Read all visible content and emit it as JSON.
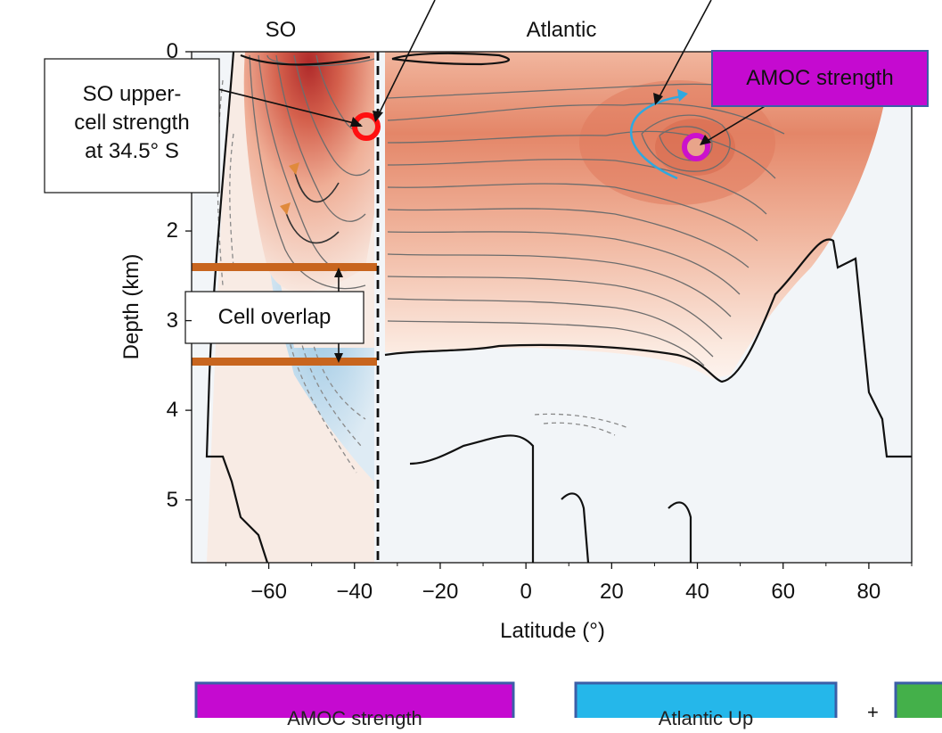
{
  "chart_data": {
    "type": "heatmap",
    "xlabel": "Latitude (°)",
    "ylabel": "Depth (km)",
    "xlim": [
      -78,
      90
    ],
    "ylim": [
      5.7,
      0
    ],
    "x_ticks": [
      -60,
      -40,
      -20,
      0,
      20,
      40,
      60,
      80
    ],
    "x_tick_labels": [
      "−60",
      "−40",
      "−20",
      "0",
      "20",
      "40",
      "60",
      "80"
    ],
    "y_ticks": [
      0,
      2,
      3,
      4,
      5
    ],
    "y_tick_labels": [
      "0",
      "2",
      "3",
      "4",
      "5"
    ],
    "basin_divider_lat": -34.5,
    "panel_labels": [
      "SO",
      "Atlantic"
    ],
    "colors": {
      "positive": "#d9684a",
      "positive_light": "#f7e3d8",
      "negative": "#a9cde6",
      "neutral": "#f2f5f8"
    },
    "annotations": {
      "so_upper_cell": {
        "text": "SO upper-\ncell strength\nat 34.5° S",
        "lat": -34.5,
        "depth": 0.85,
        "color": "#ff1a1a"
      },
      "amoc_strength": {
        "text": "AMOC strength",
        "lat": 40,
        "depth": 1.05,
        "color": "#cc11cc"
      },
      "cell_overlap": {
        "text": "Cell overlap",
        "depth_top": 2.4,
        "depth_bottom": 3.45,
        "bar_color": "#c8651e"
      }
    }
  },
  "bottom_boxes": [
    {
      "text": "AMOC strength",
      "fill": "#c50ad0",
      "border": "#3b5ea8"
    },
    {
      "text": "Atlantic Up",
      "fill": "#25b7ea",
      "border": "#3b5ea8"
    },
    {
      "text": "",
      "fill": "#44b04a",
      "border": "#3b5ea8"
    }
  ]
}
